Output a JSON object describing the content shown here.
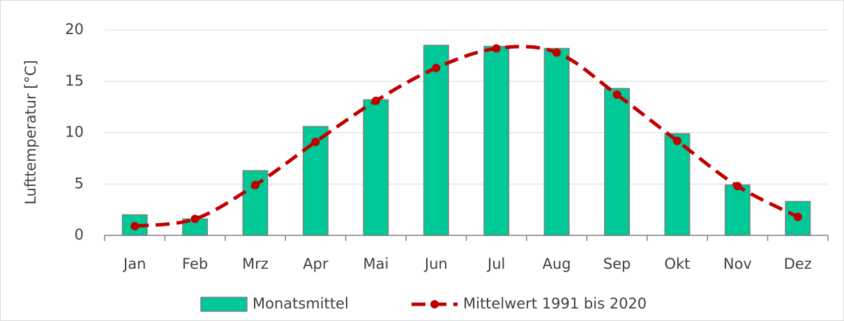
{
  "chart_data": {
    "type": "bar-line",
    "y_label": "Lufttemperatur [°C]",
    "categories": [
      "Jan",
      "Feb",
      "Mrz",
      "Apr",
      "Mai",
      "Jun",
      "Jul",
      "Aug",
      "Sep",
      "Okt",
      "Nov",
      "Dez"
    ],
    "series": [
      {
        "name": "Monatsmittel",
        "type": "bar",
        "color": "#00c896",
        "values": [
          2.0,
          1.6,
          6.3,
          10.6,
          13.2,
          18.5,
          18.4,
          18.2,
          14.3,
          9.9,
          4.9,
          3.3
        ]
      },
      {
        "name": "Mittelwert 1991 bis 2020",
        "type": "line",
        "color": "#c00000",
        "values": [
          0.9,
          1.6,
          4.9,
          9.1,
          13.1,
          16.3,
          18.2,
          17.8,
          13.7,
          9.2,
          4.8,
          1.8
        ]
      }
    ],
    "ylim": [
      0,
      20
    ],
    "yticks": [
      0,
      5,
      10,
      15,
      20
    ],
    "grid": true
  }
}
